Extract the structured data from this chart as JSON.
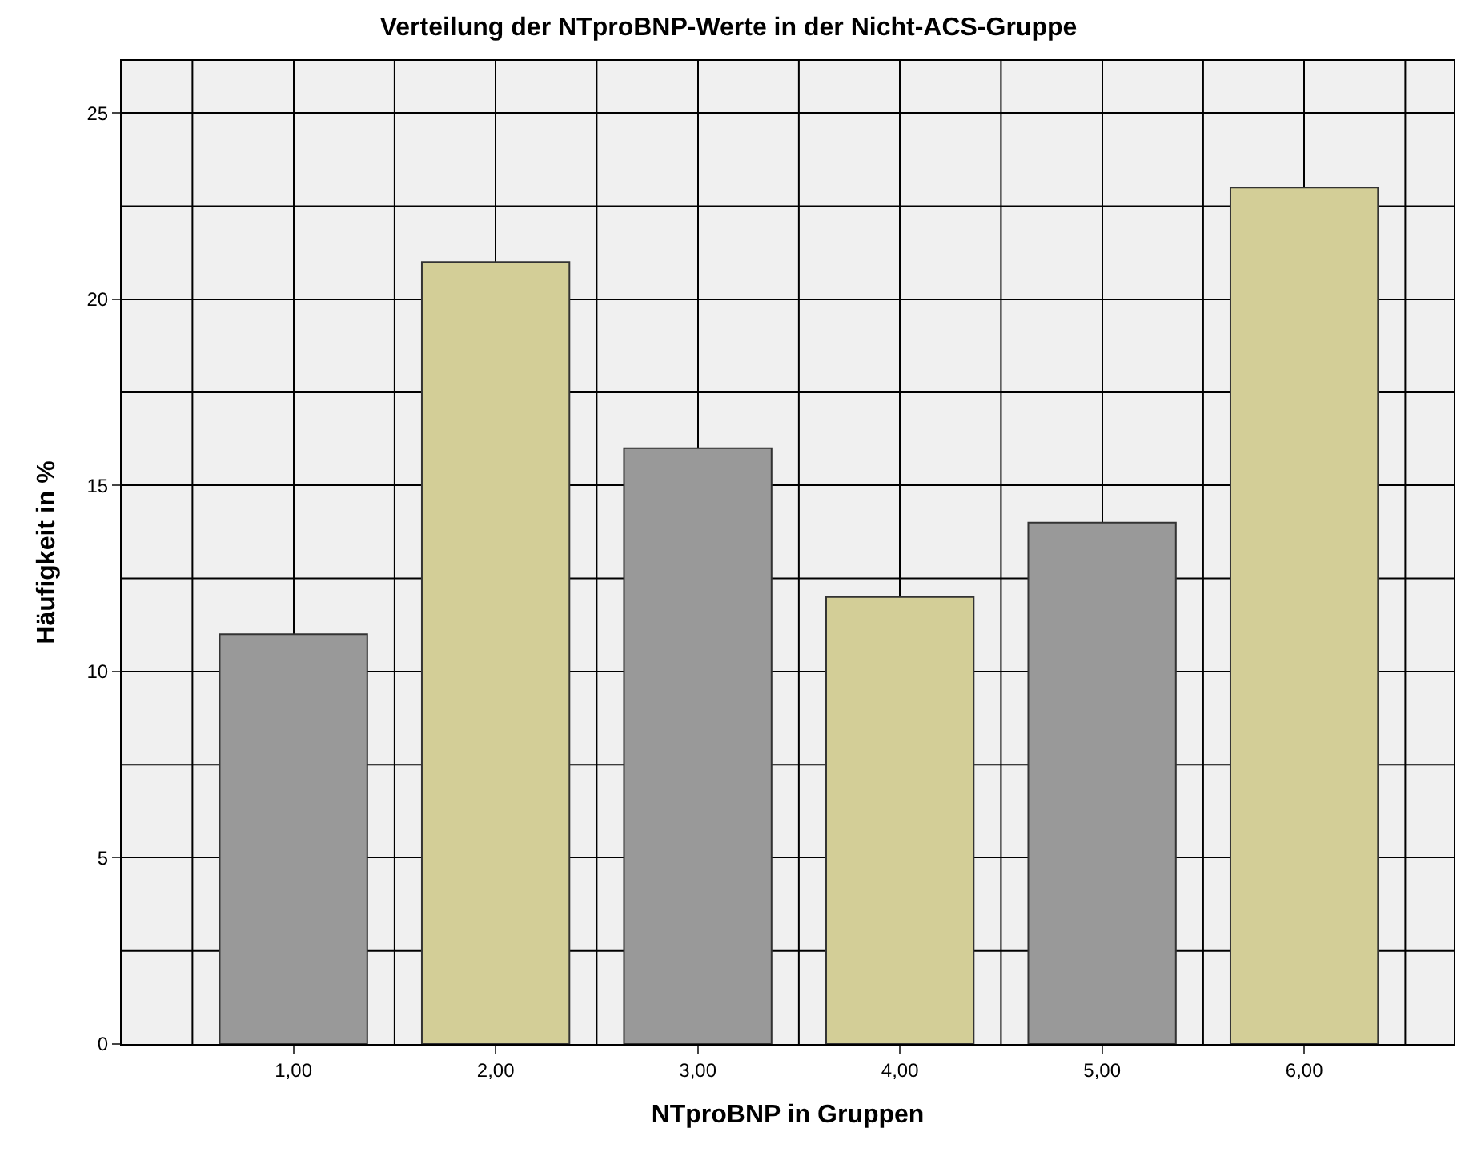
{
  "chart_data": {
    "type": "bar",
    "title": "Verteilung der NTproBNP-Werte in der Nicht-ACS-Gruppe",
    "xlabel": "NTproBNP in Gruppen",
    "ylabel": "Häufigkeit in %",
    "categories": [
      "1,00",
      "2,00",
      "3,00",
      "4,00",
      "5,00",
      "6,00"
    ],
    "values": [
      11,
      21,
      16,
      12,
      14,
      23
    ],
    "colors": [
      "#999999",
      "#d3ce97",
      "#999999",
      "#d3ce97",
      "#999999",
      "#d3ce97"
    ],
    "ylim": [
      0,
      26.4
    ],
    "yticks": [
      0,
      5,
      10,
      15,
      20,
      25
    ],
    "grid": true
  }
}
